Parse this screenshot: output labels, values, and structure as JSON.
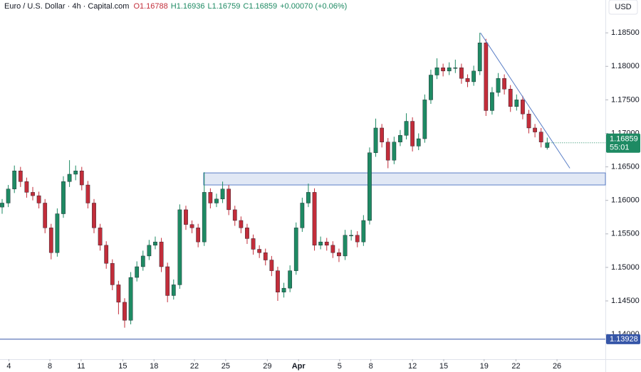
{
  "chart_data": {
    "type": "candlestick",
    "header": {
      "symbol": "Euro / U.S. Dollar · 4h · Capital.com",
      "ohlc": [
        "O1.16788",
        "H1.16936",
        "L1.16759",
        "C1.16859",
        "+0.00070 (+0.06%)"
      ]
    },
    "currency": "USD",
    "up_color": "#1e8a63",
    "down_color": "#c22d3a",
    "candles": [
      [
        1.159,
        1.1602,
        1.158,
        1.1596
      ],
      [
        1.1596,
        1.1623,
        1.159,
        1.1617
      ],
      [
        1.1617,
        1.1652,
        1.1611,
        1.1644
      ],
      [
        1.1644,
        1.165,
        1.162,
        1.1628
      ],
      [
        1.1628,
        1.1634,
        1.1604,
        1.1612
      ],
      [
        1.1612,
        1.162,
        1.16,
        1.1607
      ],
      [
        1.1607,
        1.1613,
        1.1588,
        1.1596
      ],
      [
        1.1596,
        1.1602,
        1.1551,
        1.1559
      ],
      [
        1.1559,
        1.1565,
        1.1512,
        1.1522
      ],
      [
        1.1522,
        1.1588,
        1.1516,
        1.158
      ],
      [
        1.158,
        1.1636,
        1.1574,
        1.1628
      ],
      [
        1.1628,
        1.166,
        1.162,
        1.1639
      ],
      [
        1.1639,
        1.1652,
        1.163,
        1.1644
      ],
      [
        1.1644,
        1.165,
        1.1615,
        1.1623
      ],
      [
        1.1623,
        1.1629,
        1.1588,
        1.1596
      ],
      [
        1.1596,
        1.1602,
        1.1551,
        1.1559
      ],
      [
        1.1559,
        1.1565,
        1.1525,
        1.1533
      ],
      [
        1.1533,
        1.1539,
        1.1498,
        1.1506
      ],
      [
        1.1506,
        1.1512,
        1.1466,
        1.1474
      ],
      [
        1.1474,
        1.148,
        1.143,
        1.1448
      ],
      [
        1.1448,
        1.1454,
        1.141,
        1.1421
      ],
      [
        1.1421,
        1.1493,
        1.1415,
        1.1485
      ],
      [
        1.1485,
        1.1509,
        1.1479,
        1.1501
      ],
      [
        1.1501,
        1.1525,
        1.1495,
        1.1517
      ],
      [
        1.1517,
        1.1541,
        1.1511,
        1.1533
      ],
      [
        1.1533,
        1.1546,
        1.1527,
        1.1538
      ],
      [
        1.1538,
        1.1544,
        1.1493,
        1.1501
      ],
      [
        1.1501,
        1.1507,
        1.1448,
        1.1458
      ],
      [
        1.1458,
        1.1482,
        1.1452,
        1.1474
      ],
      [
        1.1474,
        1.1594,
        1.1468,
        1.1586
      ],
      [
        1.1586,
        1.1592,
        1.1556,
        1.1564
      ],
      [
        1.1564,
        1.157,
        1.1551,
        1.1559
      ],
      [
        1.1559,
        1.1565,
        1.153,
        1.1538
      ],
      [
        1.1538,
        1.1642,
        1.1532,
        1.1612
      ],
      [
        1.1612,
        1.1618,
        1.1588,
        1.1596
      ],
      [
        1.1596,
        1.161,
        1.159,
        1.1602
      ],
      [
        1.1602,
        1.1628,
        1.1596,
        1.1617
      ],
      [
        1.1617,
        1.1623,
        1.1578,
        1.1586
      ],
      [
        1.1586,
        1.1592,
        1.1562,
        1.157
      ],
      [
        1.157,
        1.1576,
        1.1551,
        1.1559
      ],
      [
        1.1559,
        1.1565,
        1.1535,
        1.1543
      ],
      [
        1.1543,
        1.1549,
        1.1519,
        1.1527
      ],
      [
        1.1527,
        1.1533,
        1.1514,
        1.1522
      ],
      [
        1.1522,
        1.1528,
        1.1503,
        1.1511
      ],
      [
        1.1511,
        1.1517,
        1.1487,
        1.1495
      ],
      [
        1.1495,
        1.1501,
        1.145,
        1.1463
      ],
      [
        1.1463,
        1.1477,
        1.1455,
        1.1469
      ],
      [
        1.1469,
        1.1503,
        1.1463,
        1.1495
      ],
      [
        1.1495,
        1.1567,
        1.1489,
        1.1559
      ],
      [
        1.1559,
        1.1604,
        1.1553,
        1.1596
      ],
      [
        1.1596,
        1.1625,
        1.159,
        1.1612
      ],
      [
        1.1612,
        1.1618,
        1.1525,
        1.1533
      ],
      [
        1.1533,
        1.1546,
        1.1527,
        1.1538
      ],
      [
        1.1538,
        1.1544,
        1.1525,
        1.1533
      ],
      [
        1.1533,
        1.1539,
        1.1514,
        1.1522
      ],
      [
        1.1522,
        1.1528,
        1.1508,
        1.1517
      ],
      [
        1.1517,
        1.1556,
        1.1511,
        1.1548
      ],
      [
        1.1548,
        1.1556,
        1.154,
        1.1548
      ],
      [
        1.1548,
        1.1554,
        1.153,
        1.1538
      ],
      [
        1.1538,
        1.1578,
        1.1532,
        1.157
      ],
      [
        1.157,
        1.1679,
        1.1564,
        1.1671
      ],
      [
        1.1671,
        1.1722,
        1.1665,
        1.1708
      ],
      [
        1.1708,
        1.1714,
        1.1679,
        1.1687
      ],
      [
        1.1687,
        1.1693,
        1.1648,
        1.166
      ],
      [
        1.166,
        1.1695,
        1.1654,
        1.1687
      ],
      [
        1.1687,
        1.1705,
        1.1681,
        1.1697
      ],
      [
        1.1697,
        1.173,
        1.1691,
        1.1718
      ],
      [
        1.1718,
        1.1724,
        1.1673,
        1.1681
      ],
      [
        1.1681,
        1.17,
        1.1675,
        1.1692
      ],
      [
        1.1692,
        1.1758,
        1.1686,
        1.175
      ],
      [
        1.175,
        1.1795,
        1.1744,
        1.1787
      ],
      [
        1.1787,
        1.1812,
        1.1781,
        1.1798
      ],
      [
        1.1798,
        1.1804,
        1.1785,
        1.1793
      ],
      [
        1.1793,
        1.1806,
        1.1787,
        1.1798
      ],
      [
        1.1798,
        1.181,
        1.179,
        1.1798
      ],
      [
        1.1798,
        1.1804,
        1.1774,
        1.1782
      ],
      [
        1.1782,
        1.1788,
        1.1769,
        1.1777
      ],
      [
        1.1777,
        1.1801,
        1.1771,
        1.1793
      ],
      [
        1.1793,
        1.185,
        1.1787,
        1.1835
      ],
      [
        1.1835,
        1.1841,
        1.1726,
        1.1734
      ],
      [
        1.1734,
        1.1769,
        1.1728,
        1.1761
      ],
      [
        1.1761,
        1.179,
        1.1755,
        1.1782
      ],
      [
        1.1782,
        1.1788,
        1.1758,
        1.1766
      ],
      [
        1.1766,
        1.1772,
        1.1732,
        1.174
      ],
      [
        1.174,
        1.1758,
        1.1734,
        1.175
      ],
      [
        1.175,
        1.1756,
        1.1721,
        1.1729
      ],
      [
        1.1729,
        1.1735,
        1.17,
        1.1708
      ],
      [
        1.1708,
        1.1714,
        1.1694,
        1.1702
      ],
      [
        1.1702,
        1.1708,
        1.1679,
        1.1687
      ],
      [
        1.16788,
        1.16936,
        1.16759,
        1.16859
      ]
    ],
    "xlim": [
      -0.35,
      98.5
    ],
    "xticks": [
      {
        "value": 1.1,
        "label": "4"
      },
      {
        "value": 7.8,
        "label": "8"
      },
      {
        "value": 12.9,
        "label": "11"
      },
      {
        "value": 19.7,
        "label": "15"
      },
      {
        "value": 24.8,
        "label": "18"
      },
      {
        "value": 31.4,
        "label": "22"
      },
      {
        "value": 36.5,
        "label": "25"
      },
      {
        "value": 43.3,
        "label": "29"
      },
      {
        "value": 48.4,
        "label": "Apr"
      },
      {
        "value": 55.1,
        "label": "5"
      },
      {
        "value": 60.2,
        "label": "8"
      },
      {
        "value": 67.0,
        "label": "12"
      },
      {
        "value": 72.1,
        "label": "15"
      },
      {
        "value": 78.7,
        "label": "19"
      },
      {
        "value": 83.9,
        "label": "22"
      },
      {
        "value": 90.6,
        "label": "26"
      }
    ],
    "ylim": [
      1.1363,
      1.1899
    ],
    "yticks": [
      {
        "value": 1.14,
        "label": "1.14000"
      },
      {
        "value": 1.145,
        "label": "1.14500"
      },
      {
        "value": 1.15,
        "label": "1.15000"
      },
      {
        "value": 1.155,
        "label": "1.15500"
      },
      {
        "value": 1.16,
        "label": "1.16000"
      },
      {
        "value": 1.165,
        "label": "1.16500"
      },
      {
        "value": 1.17,
        "label": "1.17000"
      },
      {
        "value": 1.175,
        "label": "1.17500"
      },
      {
        "value": 1.18,
        "label": "1.18000"
      },
      {
        "value": 1.185,
        "label": "1.18500"
      }
    ],
    "last_price": {
      "value": 1.16859,
      "label": "1.16859",
      "countdown": "55:01"
    },
    "horizontal_line": {
      "value": 1.13928,
      "label": "1.13928",
      "color": "#3656a8"
    },
    "zone": {
      "x0": 32.9,
      "y0": 1.1623,
      "y1": 1.1641,
      "color": "#5b7fc7"
    },
    "trendline": {
      "x": [
        78.1,
        92.7
      ],
      "y": [
        1.185,
        1.1648
      ],
      "color": "#5b7fc7"
    }
  }
}
